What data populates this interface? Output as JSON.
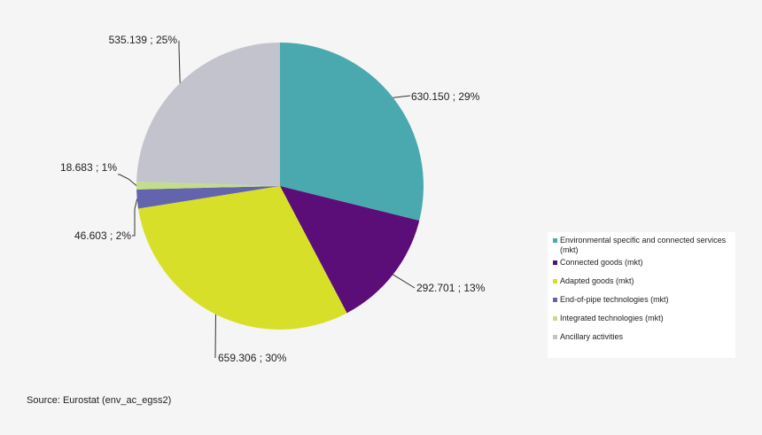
{
  "chart_data": {
    "type": "pie",
    "title": "",
    "slices": [
      {
        "name": "Environmental specific and connected services (mkt)",
        "value": 630.15,
        "label": "630.150   ; 29%",
        "color": "#4aa9ae"
      },
      {
        "name": "Connected goods (mkt)",
        "value": 292.701,
        "label": "292.701   ; 13%",
        "color": "#5b0d78"
      },
      {
        "name": "Adapted goods (mkt)",
        "value": 659.306,
        "label": "659.306   ; 30%",
        "color": "#d8df29"
      },
      {
        "name": "End-of-pipe technologies (mkt)",
        "value": 46.603,
        "label": "46.603   ; 2%",
        "color": "#6464ae"
      },
      {
        "name": "Integrated technologies (mkt)",
        "value": 18.683,
        "label": "18.683   ; 1%",
        "color": "#c3de8a"
      },
      {
        "name": "Ancillary activities",
        "value": 535.139,
        "label": "535.139   ; 25%",
        "color": "#c2c3cd"
      }
    ],
    "legend_position": "right"
  },
  "source": "Source:  Eurostat (env_ac_egss2)"
}
